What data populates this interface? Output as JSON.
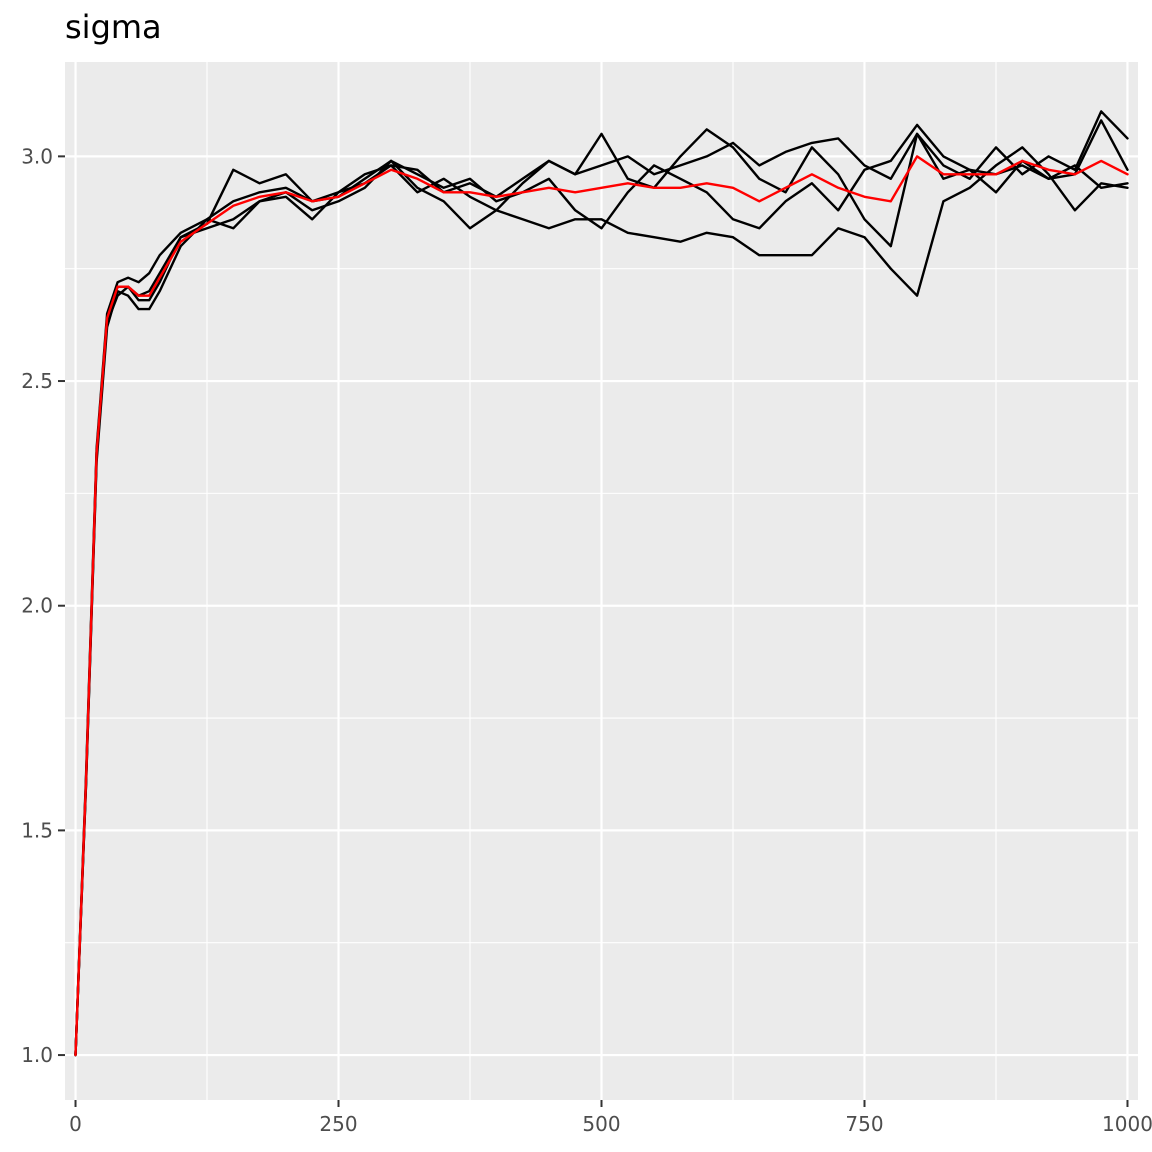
{
  "chart_data": {
    "type": "line",
    "title": "sigma",
    "xlabel": "",
    "ylabel": "",
    "xlim": [
      -10,
      1010
    ],
    "ylim": [
      0.9,
      3.21
    ],
    "x_ticks": [
      0,
      250,
      500,
      750,
      1000
    ],
    "x_tick_labels": [
      "0",
      "250",
      "500",
      "750",
      "1000"
    ],
    "y_ticks": [
      1.0,
      1.5,
      2.0,
      2.5,
      3.0
    ],
    "y_tick_labels": [
      "1.0",
      "1.5",
      "2.0",
      "2.5",
      "3.0"
    ],
    "grid": true,
    "legend": "none",
    "x": [
      0,
      10,
      20,
      30,
      40,
      50,
      60,
      70,
      80,
      100,
      125,
      150,
      175,
      200,
      225,
      250,
      275,
      300,
      325,
      350,
      375,
      400,
      425,
      450,
      475,
      500,
      525,
      550,
      575,
      600,
      625,
      650,
      675,
      700,
      725,
      750,
      775,
      800,
      825,
      850,
      875,
      900,
      925,
      950,
      975,
      1000
    ],
    "series": [
      {
        "color": "#000000",
        "values": [
          1.0,
          1.62,
          2.35,
          2.65,
          2.72,
          2.73,
          2.72,
          2.74,
          2.78,
          2.83,
          2.86,
          2.9,
          2.92,
          2.93,
          2.9,
          2.92,
          2.94,
          2.98,
          2.97,
          2.92,
          2.94,
          2.91,
          2.95,
          2.99,
          2.96,
          2.98,
          3.0,
          2.96,
          2.98,
          3.0,
          3.03,
          2.98,
          3.01,
          3.03,
          3.04,
          2.98,
          2.95,
          3.05,
          2.98,
          2.95,
          3.02,
          2.96,
          3.0,
          2.97,
          3.1,
          3.04
        ]
      },
      {
        "color": "#000000",
        "values": [
          1.0,
          1.6,
          2.32,
          2.62,
          2.7,
          2.69,
          2.66,
          2.66,
          2.7,
          2.8,
          2.86,
          2.84,
          2.9,
          2.92,
          2.88,
          2.9,
          2.93,
          2.99,
          2.96,
          2.93,
          2.95,
          2.9,
          2.92,
          2.95,
          2.88,
          2.84,
          2.92,
          2.98,
          2.95,
          2.92,
          2.86,
          2.84,
          2.9,
          2.94,
          2.88,
          2.97,
          2.99,
          3.07,
          3.0,
          2.97,
          2.92,
          2.99,
          2.95,
          2.98,
          2.93,
          2.94
        ]
      },
      {
        "color": "#000000",
        "values": [
          1.0,
          1.61,
          2.34,
          2.64,
          2.71,
          2.71,
          2.68,
          2.68,
          2.72,
          2.82,
          2.85,
          2.97,
          2.94,
          2.96,
          2.9,
          2.91,
          2.95,
          2.99,
          2.93,
          2.9,
          2.84,
          2.88,
          2.94,
          2.99,
          2.96,
          3.05,
          2.95,
          2.93,
          3.0,
          3.06,
          3.02,
          2.95,
          2.92,
          3.02,
          2.96,
          2.86,
          2.8,
          3.05,
          2.95,
          2.97,
          2.96,
          2.98,
          2.95,
          2.96,
          3.08,
          2.97
        ]
      },
      {
        "color": "#000000",
        "values": [
          1.0,
          1.6,
          2.33,
          2.63,
          2.69,
          2.71,
          2.69,
          2.7,
          2.74,
          2.82,
          2.84,
          2.86,
          2.9,
          2.91,
          2.86,
          2.92,
          2.96,
          2.98,
          2.92,
          2.95,
          2.91,
          2.88,
          2.86,
          2.84,
          2.86,
          2.86,
          2.83,
          2.82,
          2.81,
          2.83,
          2.82,
          2.78,
          2.78,
          2.78,
          2.84,
          2.82,
          2.75,
          2.69,
          2.9,
          2.93,
          2.98,
          3.02,
          2.96,
          2.88,
          2.94,
          2.93
        ]
      },
      {
        "color": "#ff0000",
        "values": [
          1.0,
          1.61,
          2.34,
          2.64,
          2.71,
          2.71,
          2.69,
          2.69,
          2.73,
          2.81,
          2.85,
          2.89,
          2.91,
          2.92,
          2.9,
          2.91,
          2.94,
          2.97,
          2.95,
          2.92,
          2.92,
          2.91,
          2.92,
          2.93,
          2.92,
          2.93,
          2.94,
          2.93,
          2.93,
          2.94,
          2.93,
          2.9,
          2.93,
          2.96,
          2.93,
          2.91,
          2.9,
          3.0,
          2.96,
          2.96,
          2.96,
          2.99,
          2.97,
          2.96,
          2.99,
          2.96
        ]
      }
    ]
  }
}
